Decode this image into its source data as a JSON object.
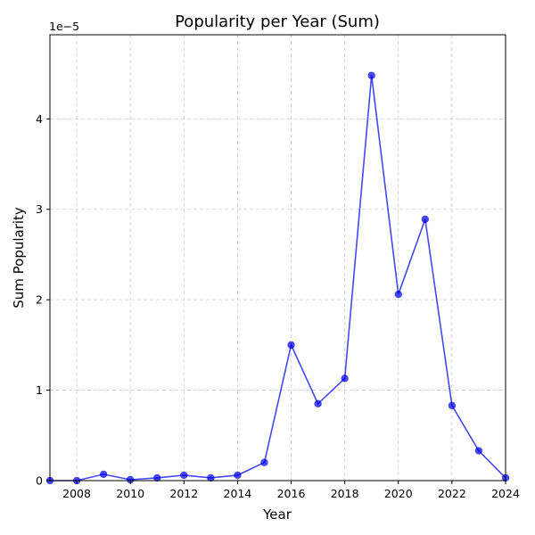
{
  "chart_data": {
    "type": "line",
    "title": "Popularity per Year (Sum)",
    "xlabel": "Year",
    "ylabel": "Sum Popularity",
    "y_scale_label": "1e−5",
    "xlim": [
      2007,
      2024
    ],
    "ylim": [
      0,
      4.93
    ],
    "x_ticks": [
      2008,
      2010,
      2012,
      2014,
      2016,
      2018,
      2020,
      2022,
      2024
    ],
    "y_ticks": [
      0,
      1,
      2,
      3,
      4
    ],
    "grid": true,
    "color": "#0000ee",
    "series": [
      {
        "x": [
          2007,
          2008,
          2009,
          2010,
          2011,
          2012,
          2013,
          2014,
          2015,
          2016,
          2017,
          2018,
          2019,
          2020,
          2021,
          2022,
          2023,
          2024
        ],
        "y": [
          0.0,
          0.0,
          0.07,
          0.01,
          0.03,
          0.06,
          0.03,
          0.06,
          0.2,
          1.5,
          0.85,
          1.13,
          4.48,
          2.06,
          2.89,
          0.83,
          0.33,
          0.03
        ]
      }
    ]
  }
}
